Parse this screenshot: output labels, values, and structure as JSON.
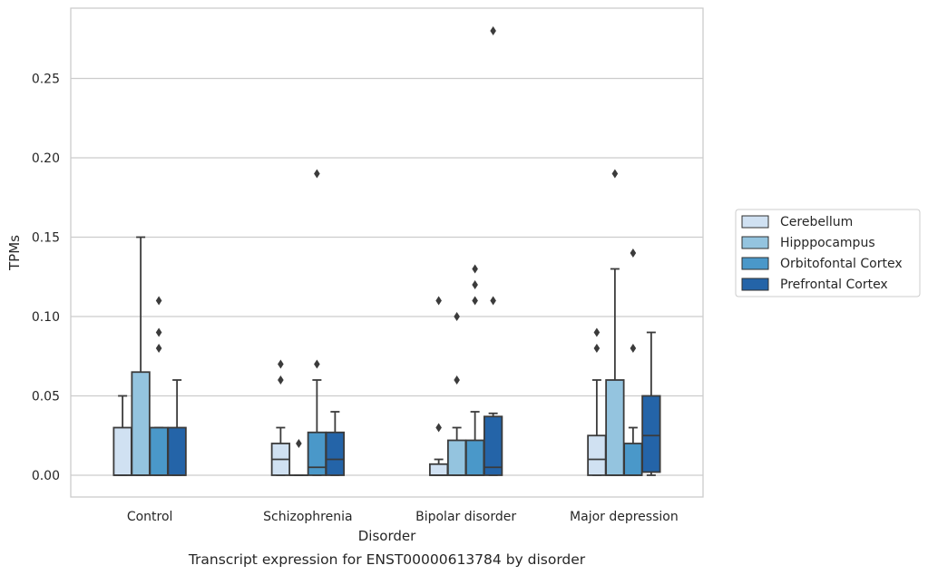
{
  "chart_data": {
    "type": "box",
    "xlabel": "Disorder",
    "ylabel": "TPMs",
    "caption": "Transcript expression for ENST00000613784 by disorder",
    "ylim": [
      -0.014,
      0.294
    ],
    "yticks": [
      0.0,
      0.05,
      0.1,
      0.15,
      0.2,
      0.25
    ],
    "ytick_labels": [
      "0.00",
      "0.05",
      "0.10",
      "0.15",
      "0.20",
      "0.25"
    ],
    "grid": true,
    "legend_position": "right",
    "categories": [
      "Control",
      "Schizophrenia",
      "Bipolar disorder",
      "Major depression"
    ],
    "series": [
      {
        "name": "Cerebellum",
        "color": "#d0e1f2",
        "boxes": [
          {
            "q1": 0.0,
            "median": 0.0,
            "q3": 0.03,
            "whislo": 0.0,
            "whishi": 0.05,
            "fliers": []
          },
          {
            "q1": 0.0,
            "median": 0.01,
            "q3": 0.02,
            "whislo": 0.0,
            "whishi": 0.03,
            "fliers": [
              0.06,
              0.07
            ]
          },
          {
            "q1": 0.0,
            "median": 0.0,
            "q3": 0.007,
            "whislo": 0.0,
            "whishi": 0.01,
            "fliers": [
              0.03,
              0.11
            ]
          },
          {
            "q1": 0.0,
            "median": 0.01,
            "q3": 0.025,
            "whislo": 0.0,
            "whishi": 0.06,
            "fliers": [
              0.08,
              0.09
            ]
          }
        ]
      },
      {
        "name": "Hipppocampus",
        "color": "#94c4df",
        "boxes": [
          {
            "q1": 0.0,
            "median": 0.0,
            "q3": 0.065,
            "whislo": 0.0,
            "whishi": 0.15,
            "fliers": []
          },
          {
            "q1": 0.0,
            "median": 0.0,
            "q3": 0.0,
            "whislo": 0.0,
            "whishi": 0.0,
            "fliers": [
              0.02
            ]
          },
          {
            "q1": 0.0,
            "median": 0.0,
            "q3": 0.022,
            "whislo": 0.0,
            "whishi": 0.03,
            "fliers": [
              0.06,
              0.1
            ]
          },
          {
            "q1": 0.0,
            "median": 0.0,
            "q3": 0.06,
            "whislo": 0.0,
            "whishi": 0.13,
            "fliers": [
              0.19
            ]
          }
        ]
      },
      {
        "name": "Orbitofontal Cortex",
        "color": "#4a98c9",
        "boxes": [
          {
            "q1": 0.0,
            "median": 0.0,
            "q3": 0.03,
            "whislo": 0.0,
            "whishi": 0.03,
            "fliers": [
              0.08,
              0.09,
              0.11
            ]
          },
          {
            "q1": 0.0,
            "median": 0.005,
            "q3": 0.027,
            "whislo": 0.0,
            "whishi": 0.06,
            "fliers": [
              0.07,
              0.19
            ]
          },
          {
            "q1": 0.0,
            "median": 0.0,
            "q3": 0.022,
            "whislo": 0.0,
            "whishi": 0.04,
            "fliers": [
              0.11,
              0.12,
              0.13
            ]
          },
          {
            "q1": 0.0,
            "median": 0.0,
            "q3": 0.02,
            "whislo": 0.0,
            "whishi": 0.03,
            "fliers": [
              0.08,
              0.14
            ]
          }
        ]
      },
      {
        "name": "Prefrontal Cortex",
        "color": "#2464a8",
        "boxes": [
          {
            "q1": 0.0,
            "median": 0.0,
            "q3": 0.03,
            "whislo": 0.0,
            "whishi": 0.06,
            "fliers": []
          },
          {
            "q1": 0.0,
            "median": 0.01,
            "q3": 0.027,
            "whislo": 0.0,
            "whishi": 0.04,
            "fliers": []
          },
          {
            "q1": 0.0,
            "median": 0.005,
            "q3": 0.037,
            "whislo": 0.0,
            "whishi": 0.039,
            "fliers": [
              0.11,
              0.28
            ]
          },
          {
            "q1": 0.002,
            "median": 0.025,
            "q3": 0.05,
            "whislo": 0.0,
            "whishi": 0.09,
            "fliers": []
          }
        ]
      }
    ]
  }
}
